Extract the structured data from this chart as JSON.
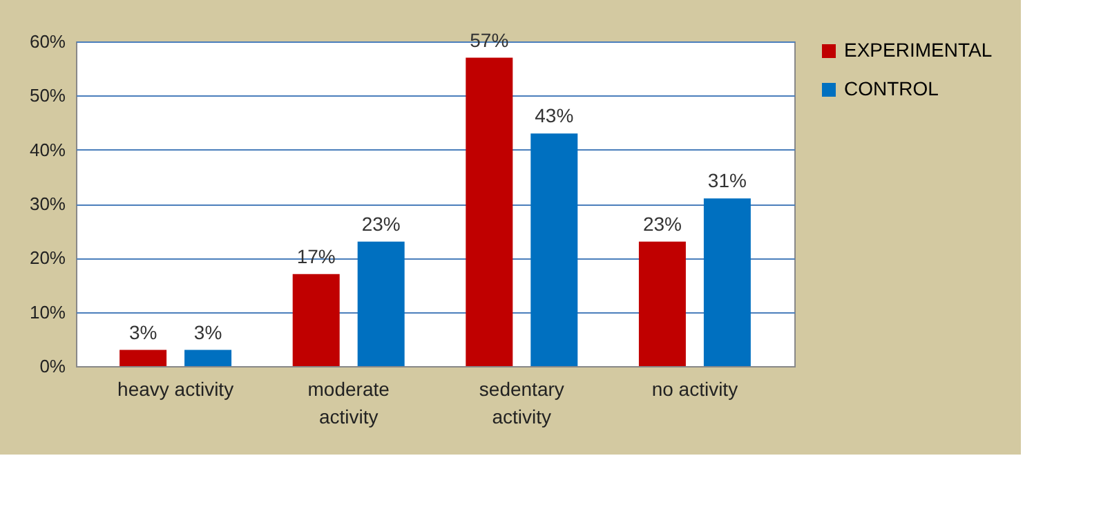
{
  "chart_data": {
    "type": "bar",
    "categories": [
      "heavy activity",
      "moderate activity",
      "sedentary activity",
      "no activity"
    ],
    "series": [
      {
        "name": "EXPERIMENTAL",
        "color": "#c00000",
        "values": [
          3,
          17,
          57,
          23
        ],
        "value_labels": [
          "3%",
          "17%",
          "57%",
          "23%"
        ]
      },
      {
        "name": "CONTROL",
        "color": "#0070c0",
        "values": [
          3,
          23,
          43,
          31
        ],
        "value_labels": [
          "3%",
          "23%",
          "43%",
          "31%"
        ]
      }
    ],
    "ylim": [
      0,
      60
    ],
    "yticks": [
      {
        "value": 0,
        "label": "0%"
      },
      {
        "value": 10,
        "label": "10%"
      },
      {
        "value": 20,
        "label": "20%"
      },
      {
        "value": 30,
        "label": "30%"
      },
      {
        "value": 40,
        "label": "40%"
      },
      {
        "value": 50,
        "label": "50%"
      },
      {
        "value": 60,
        "label": "60%"
      }
    ],
    "grid": "y",
    "legend": "right"
  }
}
